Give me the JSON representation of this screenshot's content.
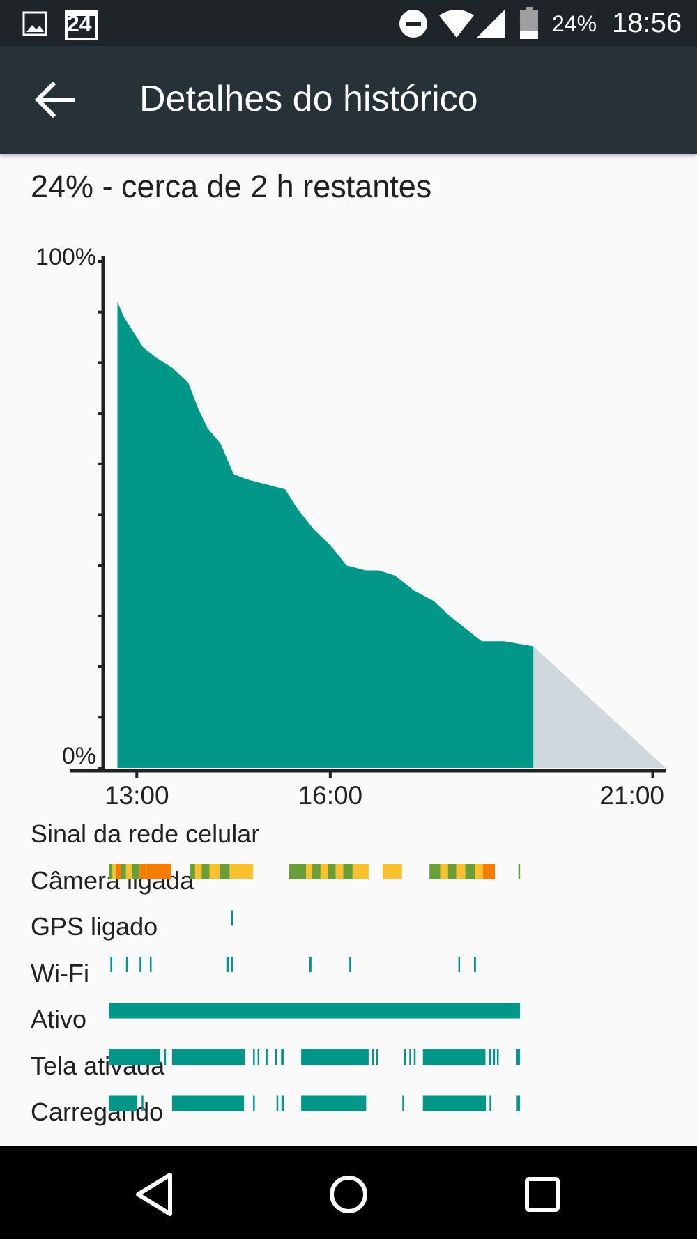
{
  "status_bar": {
    "battery": "24%",
    "time": "18:56",
    "notification_icons": [
      "image-icon",
      "calendar-24-icon"
    ],
    "system_icons": [
      "do-not-disturb-icon",
      "wifi-icon",
      "cell-signal-icon",
      "battery-icon"
    ],
    "calendar_day": "24"
  },
  "toolbar": {
    "back_icon": "arrow-back-icon",
    "title": "Detalhes do histórico"
  },
  "summary": "24% - cerca de 2 h restantes",
  "chart_data": {
    "type": "area",
    "title": "",
    "xlabel": "",
    "ylabel": "",
    "ylim": [
      0,
      100
    ],
    "y_tick_labels": [
      "100%",
      "0%"
    ],
    "x_tick_labels": [
      "13:00",
      "16:00",
      "21:00"
    ],
    "xlim_hours": [
      12.5,
      21.2
    ],
    "grid": false,
    "colors": {
      "history": "#009688",
      "projection": "#cfd8dc",
      "axis": "#212121"
    },
    "series": [
      {
        "x": [
          12.7,
          12.8,
          12.95,
          13.1,
          13.3,
          13.55,
          13.8,
          13.95,
          14.1,
          14.3,
          14.5,
          14.7,
          15.0,
          15.3,
          15.5,
          15.75,
          16.0,
          16.25,
          16.55,
          16.75,
          17.0,
          17.3,
          17.6,
          17.85,
          18.05,
          18.35,
          18.6,
          18.7,
          19.15
        ],
        "y": [
          92,
          89,
          86,
          83,
          81,
          79,
          76,
          71,
          67,
          64,
          58,
          57,
          56,
          55,
          51,
          47,
          44,
          40,
          39,
          39,
          38,
          35,
          33,
          30,
          28,
          25,
          25,
          25,
          24
        ]
      },
      {
        "x": [
          19.15,
          21.2
        ],
        "y": [
          24,
          0
        ]
      }
    ]
  },
  "tracks": [
    {
      "label": "Sinal da rede celular",
      "color": "#009688",
      "segments": [
        [
          0.0,
          0.009,
          "#689f38"
        ],
        [
          0.009,
          0.018,
          "#fbc02d"
        ],
        [
          0.018,
          0.03,
          "#f57c00"
        ],
        [
          0.03,
          0.042,
          "#689f38"
        ],
        [
          0.042,
          0.056,
          "#fbc02d"
        ],
        [
          0.056,
          0.075,
          "#689f38"
        ],
        [
          0.075,
          0.092,
          "#f57c00"
        ],
        [
          0.092,
          0.152,
          "#f57c00"
        ],
        [
          0.197,
          0.21,
          "#689f38"
        ],
        [
          0.21,
          0.226,
          "#fbc02d"
        ],
        [
          0.226,
          0.245,
          "#689f38"
        ],
        [
          0.245,
          0.27,
          "#fbc02d"
        ],
        [
          0.27,
          0.294,
          "#689f38"
        ],
        [
          0.294,
          0.351,
          "#fbc02d"
        ],
        [
          0.439,
          0.48,
          "#689f38"
        ],
        [
          0.48,
          0.495,
          "#fbc02d"
        ],
        [
          0.495,
          0.515,
          "#689f38"
        ],
        [
          0.515,
          0.533,
          "#fbc02d"
        ],
        [
          0.533,
          0.552,
          "#689f38"
        ],
        [
          0.552,
          0.57,
          "#fbc02d"
        ],
        [
          0.57,
          0.593,
          "#689f38"
        ],
        [
          0.593,
          0.632,
          "#fbc02d"
        ],
        [
          0.666,
          0.713,
          "#fbc02d"
        ],
        [
          0.78,
          0.806,
          "#689f38"
        ],
        [
          0.806,
          0.825,
          "#fbc02d"
        ],
        [
          0.825,
          0.845,
          "#689f38"
        ],
        [
          0.845,
          0.867,
          "#fbc02d"
        ],
        [
          0.867,
          0.89,
          "#689f38"
        ],
        [
          0.89,
          0.91,
          "#fbc02d"
        ],
        [
          0.91,
          0.939,
          "#f57c00"
        ],
        [
          0.996,
          1.0,
          "#689f38"
        ]
      ]
    },
    {
      "label": "Câmera ligada",
      "color": "#009688",
      "segments": [
        [
          0.298,
          0.301
        ]
      ]
    },
    {
      "label": "GPS ligado",
      "color": "#009688",
      "segments": [
        [
          0.004,
          0.008
        ],
        [
          0.042,
          0.047
        ],
        [
          0.075,
          0.078
        ],
        [
          0.1,
          0.103
        ],
        [
          0.286,
          0.292
        ],
        [
          0.298,
          0.302
        ],
        [
          0.488,
          0.493
        ],
        [
          0.585,
          0.589
        ],
        [
          0.85,
          0.854
        ],
        [
          0.888,
          0.893
        ]
      ]
    },
    {
      "label": "Wi-Fi",
      "color": "#009688",
      "segments": [
        [
          0.0,
          1.0
        ]
      ]
    },
    {
      "label": "Ativo",
      "color": "#009688",
      "segments": [
        [
          0.0,
          0.125
        ],
        [
          0.135,
          0.138
        ],
        [
          0.154,
          0.331
        ],
        [
          0.351,
          0.354
        ],
        [
          0.362,
          0.365
        ],
        [
          0.382,
          0.385
        ],
        [
          0.404,
          0.409
        ],
        [
          0.419,
          0.426
        ],
        [
          0.468,
          0.632
        ],
        [
          0.64,
          0.644
        ],
        [
          0.65,
          0.653
        ],
        [
          0.718,
          0.721
        ],
        [
          0.731,
          0.735
        ],
        [
          0.742,
          0.746
        ],
        [
          0.764,
          0.916
        ],
        [
          0.925,
          0.928
        ],
        [
          0.935,
          0.938
        ],
        [
          0.944,
          0.947
        ],
        [
          0.99,
          1.0
        ]
      ]
    },
    {
      "label": "Tela ativada",
      "color": "#009688",
      "segments": [
        [
          0.0,
          0.069
        ],
        [
          0.08,
          0.083
        ],
        [
          0.154,
          0.329
        ],
        [
          0.351,
          0.354
        ],
        [
          0.408,
          0.412
        ],
        [
          0.42,
          0.426
        ],
        [
          0.468,
          0.626
        ],
        [
          0.714,
          0.717
        ],
        [
          0.764,
          0.917
        ],
        [
          0.926,
          0.929
        ],
        [
          0.992,
          1.0
        ]
      ]
    },
    {
      "label": "Carregando",
      "color": "#009688",
      "segments": []
    }
  ],
  "nav": {
    "back": "nav-back-icon",
    "home": "nav-home-icon",
    "recents": "nav-recents-icon"
  }
}
